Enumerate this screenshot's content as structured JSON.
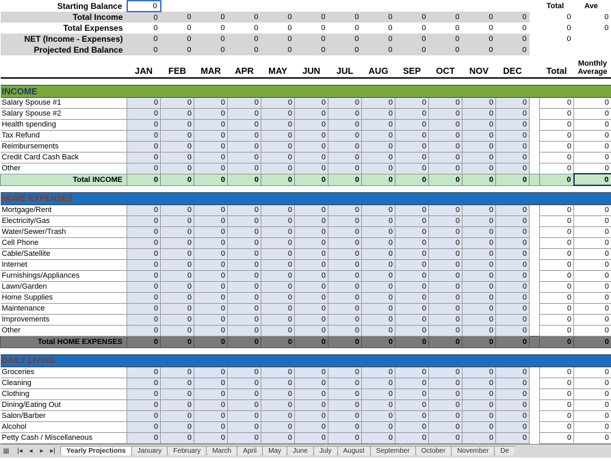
{
  "months": [
    "JAN",
    "FEB",
    "MAR",
    "APR",
    "MAY",
    "JUN",
    "JUL",
    "AUG",
    "SEP",
    "OCT",
    "NOV",
    "DEC"
  ],
  "totals_header": {
    "total": "Total",
    "avg": "Ave",
    "monthly_avg_line1": "Monthly",
    "monthly_avg_line2": "Average"
  },
  "summary": {
    "rows": [
      {
        "label": "Starting Balance",
        "values": [
          "0",
          "",
          "",
          "",
          "",
          "",
          "",
          "",
          "",
          "",
          "",
          ""
        ],
        "total": "",
        "avg": "",
        "bg": "white",
        "active": true
      },
      {
        "label": "Total Income",
        "values": [
          "0",
          "0",
          "0",
          "0",
          "0",
          "0",
          "0",
          "0",
          "0",
          "0",
          "0",
          "0"
        ],
        "total": "0",
        "avg": "0",
        "bg": "gray"
      },
      {
        "label": "Total Expenses",
        "values": [
          "0",
          "0",
          "0",
          "0",
          "0",
          "0",
          "0",
          "0",
          "0",
          "0",
          "0",
          "0"
        ],
        "total": "0",
        "avg": "0",
        "bg": "white"
      },
      {
        "label": "NET (Income - Expenses)",
        "values": [
          "0",
          "0",
          "0",
          "0",
          "0",
          "0",
          "0",
          "0",
          "0",
          "0",
          "0",
          "0"
        ],
        "total": "0",
        "avg": "",
        "bg": "gray"
      },
      {
        "label": "Projected End Balance",
        "values": [
          "0",
          "0",
          "0",
          "0",
          "0",
          "0",
          "0",
          "0",
          "0",
          "0",
          "0",
          "0"
        ],
        "total": "",
        "avg": "",
        "bg": "gray"
      }
    ]
  },
  "sections": [
    {
      "title": "INCOME",
      "style": "green",
      "rows": [
        {
          "label": "Salary Spouse #1",
          "values": [
            "0",
            "0",
            "0",
            "0",
            "0",
            "0",
            "0",
            "0",
            "0",
            "0",
            "0",
            "0"
          ],
          "total": "0",
          "avg": "0"
        },
        {
          "label": "Salary Spouse #2",
          "values": [
            "0",
            "0",
            "0",
            "0",
            "0",
            "0",
            "0",
            "0",
            "0",
            "0",
            "0",
            "0"
          ],
          "total": "0",
          "avg": "0"
        },
        {
          "label": "Health spending",
          "values": [
            "0",
            "0",
            "0",
            "0",
            "0",
            "0",
            "0",
            "0",
            "0",
            "0",
            "0",
            "0"
          ],
          "total": "0",
          "avg": "0"
        },
        {
          "label": "Tax Refund",
          "values": [
            "0",
            "0",
            "0",
            "0",
            "0",
            "0",
            "0",
            "0",
            "0",
            "0",
            "0",
            "0"
          ],
          "total": "0",
          "avg": "0"
        },
        {
          "label": "Reimbursements",
          "values": [
            "0",
            "0",
            "0",
            "0",
            "0",
            "0",
            "0",
            "0",
            "0",
            "0",
            "0",
            "0"
          ],
          "total": "0",
          "avg": "0"
        },
        {
          "label": "Credit Card Cash Back",
          "values": [
            "0",
            "0",
            "0",
            "0",
            "0",
            "0",
            "0",
            "0",
            "0",
            "0",
            "0",
            "0"
          ],
          "total": "0",
          "avg": "0"
        },
        {
          "label": "Other",
          "values": [
            "0",
            "0",
            "0",
            "0",
            "0",
            "0",
            "0",
            "0",
            "0",
            "0",
            "0",
            "0"
          ],
          "total": "0",
          "avg": "0"
        }
      ],
      "total": {
        "label": "Total INCOME",
        "values": [
          "0",
          "0",
          "0",
          "0",
          "0",
          "0",
          "0",
          "0",
          "0",
          "0",
          "0",
          "0"
        ],
        "total": "0",
        "avg": "0",
        "style": "income"
      }
    },
    {
      "title": "HOME EXPENSES",
      "style": "blue",
      "rows": [
        {
          "label": "Mortgage/Rent",
          "values": [
            "0",
            "0",
            "0",
            "0",
            "0",
            "0",
            "0",
            "0",
            "0",
            "0",
            "0",
            "0"
          ],
          "total": "0",
          "avg": "0"
        },
        {
          "label": "Electricity/Gas",
          "values": [
            "0",
            "0",
            "0",
            "0",
            "0",
            "0",
            "0",
            "0",
            "0",
            "0",
            "0",
            "0"
          ],
          "total": "0",
          "avg": "0"
        },
        {
          "label": "Water/Sewer/Trash",
          "values": [
            "0",
            "0",
            "0",
            "0",
            "0",
            "0",
            "0",
            "0",
            "0",
            "0",
            "0",
            "0"
          ],
          "total": "0",
          "avg": "0"
        },
        {
          "label": "Cell Phone",
          "values": [
            "0",
            "0",
            "0",
            "0",
            "0",
            "0",
            "0",
            "0",
            "0",
            "0",
            "0",
            "0"
          ],
          "total": "0",
          "avg": "0"
        },
        {
          "label": "Cable/Satellite",
          "values": [
            "0",
            "0",
            "0",
            "0",
            "0",
            "0",
            "0",
            "0",
            "0",
            "0",
            "0",
            "0"
          ],
          "total": "0",
          "avg": "0"
        },
        {
          "label": "Internet",
          "values": [
            "0",
            "0",
            "0",
            "0",
            "0",
            "0",
            "0",
            "0",
            "0",
            "0",
            "0",
            "0"
          ],
          "total": "0",
          "avg": "0"
        },
        {
          "label": "Furnishings/Appliances",
          "values": [
            "0",
            "0",
            "0",
            "0",
            "0",
            "0",
            "0",
            "0",
            "0",
            "0",
            "0",
            "0"
          ],
          "total": "0",
          "avg": "0"
        },
        {
          "label": "Lawn/Garden",
          "values": [
            "0",
            "0",
            "0",
            "0",
            "0",
            "0",
            "0",
            "0",
            "0",
            "0",
            "0",
            "0"
          ],
          "total": "0",
          "avg": "0"
        },
        {
          "label": "Home Supplies",
          "values": [
            "0",
            "0",
            "0",
            "0",
            "0",
            "0",
            "0",
            "0",
            "0",
            "0",
            "0",
            "0"
          ],
          "total": "0",
          "avg": "0"
        },
        {
          "label": "Maintenance",
          "values": [
            "0",
            "0",
            "0",
            "0",
            "0",
            "0",
            "0",
            "0",
            "0",
            "0",
            "0",
            "0"
          ],
          "total": "0",
          "avg": "0"
        },
        {
          "label": "Improvements",
          "values": [
            "0",
            "0",
            "0",
            "0",
            "0",
            "0",
            "0",
            "0",
            "0",
            "0",
            "0",
            "0"
          ],
          "total": "0",
          "avg": "0"
        },
        {
          "label": "Other",
          "values": [
            "0",
            "0",
            "0",
            "0",
            "0",
            "0",
            "0",
            "0",
            "0",
            "0",
            "0",
            "0"
          ],
          "total": "0",
          "avg": "0"
        }
      ],
      "total": {
        "label": "Total HOME EXPENSES",
        "values": [
          "0",
          "0",
          "0",
          "0",
          "0",
          "0",
          "0",
          "0",
          "0",
          "0",
          "0",
          "0"
        ],
        "total": "0",
        "avg": "0",
        "style": "gray"
      }
    },
    {
      "title": "DAILY LIVING",
      "style": "blue",
      "rows": [
        {
          "label": "Groceries",
          "values": [
            "0",
            "0",
            "0",
            "0",
            "0",
            "0",
            "0",
            "0",
            "0",
            "0",
            "0",
            "0"
          ],
          "total": "0",
          "avg": "0"
        },
        {
          "label": "Cleaning",
          "values": [
            "0",
            "0",
            "0",
            "0",
            "0",
            "0",
            "0",
            "0",
            "0",
            "0",
            "0",
            "0"
          ],
          "total": "0",
          "avg": "0"
        },
        {
          "label": "Clothing",
          "values": [
            "0",
            "0",
            "0",
            "0",
            "0",
            "0",
            "0",
            "0",
            "0",
            "0",
            "0",
            "0"
          ],
          "total": "0",
          "avg": "0"
        },
        {
          "label": "Dining/Eating Out",
          "values": [
            "0",
            "0",
            "0",
            "0",
            "0",
            "0",
            "0",
            "0",
            "0",
            "0",
            "0",
            "0"
          ],
          "total": "0",
          "avg": "0"
        },
        {
          "label": "Salon/Barber",
          "values": [
            "0",
            "0",
            "0",
            "0",
            "0",
            "0",
            "0",
            "0",
            "0",
            "0",
            "0",
            "0"
          ],
          "total": "0",
          "avg": "0"
        },
        {
          "label": "Alcohol",
          "values": [
            "0",
            "0",
            "0",
            "0",
            "0",
            "0",
            "0",
            "0",
            "0",
            "0",
            "0",
            "0"
          ],
          "total": "0",
          "avg": "0"
        },
        {
          "label": "Petty Cash / Miscellaneous",
          "values": [
            "0",
            "0",
            "0",
            "0",
            "0",
            "0",
            "0",
            "0",
            "0",
            "0",
            "0",
            "0"
          ],
          "total": "0",
          "avg": "0"
        }
      ]
    }
  ],
  "tabs": {
    "active": "Yearly Projections",
    "items": [
      "Yearly Projections",
      "January",
      "February",
      "March",
      "April",
      "May",
      "June",
      "July",
      "August",
      "September",
      "October",
      "November",
      "De"
    ]
  }
}
